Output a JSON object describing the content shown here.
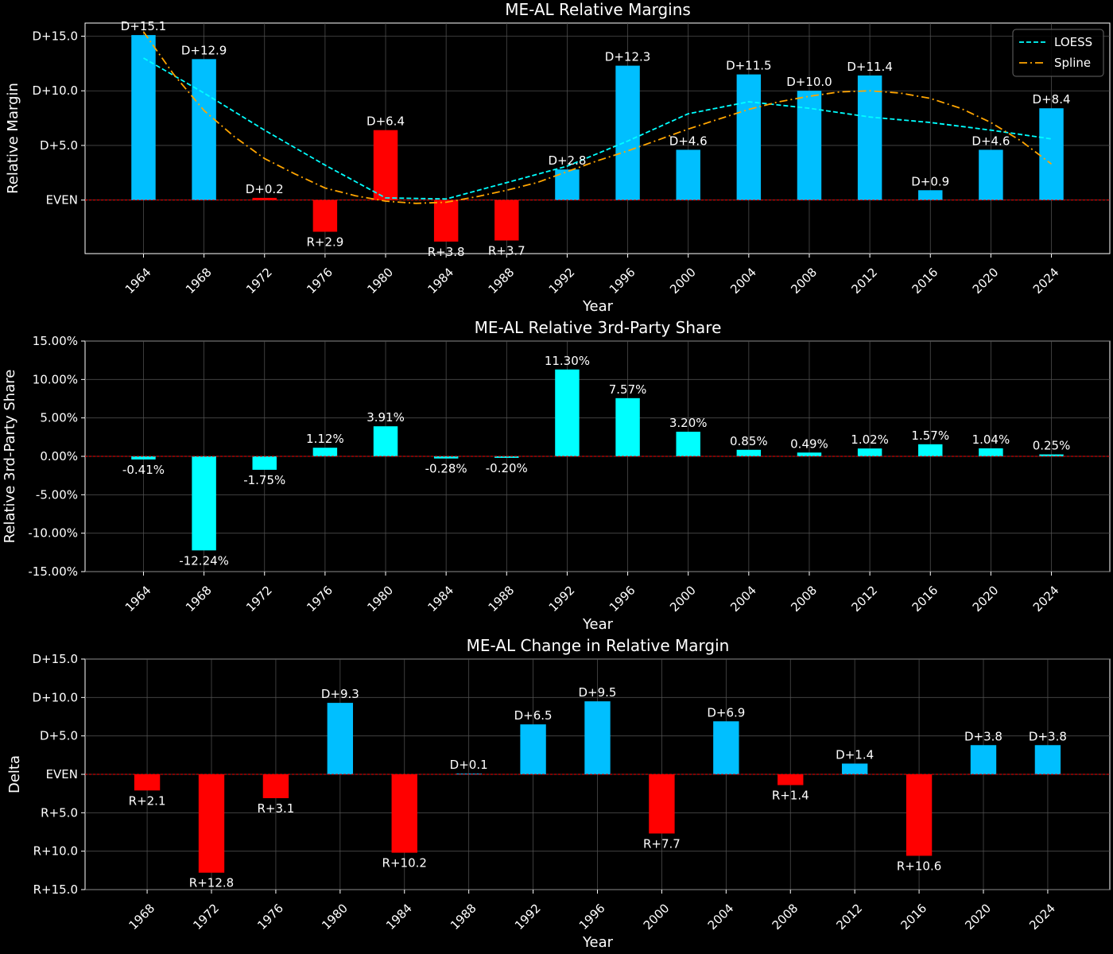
{
  "colors": {
    "background": "#000000",
    "dem": "#00bfff",
    "rep": "#ff0000",
    "third": "#00ffff",
    "loess": "#00ffff",
    "spline": "#ffa500",
    "grid": "#555555",
    "zero_line": "#ff0000"
  },
  "chart_data": [
    {
      "type": "bar",
      "title": "ME-AL Relative Margins",
      "xlabel": "Year",
      "ylabel": "Relative Margin",
      "ylim": [
        -4.9,
        16.2
      ],
      "yticks": [
        {
          "value": 0,
          "label": "EVEN"
        },
        {
          "value": 5,
          "label": "D+5.0"
        },
        {
          "value": 10,
          "label": "D+10.0"
        },
        {
          "value": 15,
          "label": "D+15.0"
        }
      ],
      "categories": [
        "1964",
        "1968",
        "1972",
        "1976",
        "1980",
        "1984",
        "1988",
        "1992",
        "1996",
        "2000",
        "2004",
        "2008",
        "2012",
        "2016",
        "2020",
        "2024"
      ],
      "values": [
        15.1,
        12.9,
        0.2,
        -2.9,
        6.4,
        -3.8,
        -3.7,
        2.8,
        12.3,
        4.6,
        11.5,
        10.0,
        11.4,
        0.9,
        4.6,
        8.4
      ],
      "labels": [
        "D+15.1",
        "D+12.9",
        "D+0.2",
        "R+2.9",
        "D+6.4",
        "R+3.8",
        "R+3.7",
        "D+2.8",
        "D+12.3",
        "D+4.6",
        "D+11.5",
        "D+10.0",
        "D+11.4",
        "D+0.9",
        "D+4.6",
        "D+8.4"
      ],
      "bar_colors": [
        "dem",
        "dem",
        "rep",
        "rep",
        "rep",
        "rep",
        "rep",
        "dem",
        "dem",
        "dem",
        "dem",
        "dem",
        "dem",
        "dem",
        "dem",
        "dem"
      ],
      "grid": true,
      "legend": "top-right",
      "lines": [
        {
          "name": "LOESS",
          "style": "dashed",
          "color": "loess",
          "x": [
            "1964",
            "1968",
            "1972",
            "1976",
            "1980",
            "1984",
            "1988",
            "1992",
            "1996",
            "2000",
            "2004",
            "2008",
            "2012",
            "2016",
            "2020",
            "2024"
          ],
          "values": [
            13.0,
            9.8,
            6.4,
            3.2,
            0.2,
            0.1,
            1.6,
            3.1,
            5.4,
            7.9,
            9.0,
            8.4,
            7.6,
            7.1,
            6.4,
            5.6
          ]
        },
        {
          "name": "Spline",
          "style": "dashdot",
          "color": "spline",
          "x": [
            "1964",
            "1966",
            "1968",
            "1970",
            "1972",
            "1974",
            "1976",
            "1978",
            "1980",
            "1982",
            "1984",
            "1986",
            "1988",
            "1990",
            "1992",
            "1994",
            "1996",
            "1998",
            "2000",
            "2002",
            "2004",
            "2006",
            "2008",
            "2010",
            "2012",
            "2014",
            "2016",
            "2018",
            "2020",
            "2022",
            "2024"
          ],
          "values": [
            15.4,
            11.5,
            8.2,
            5.8,
            3.8,
            2.4,
            1.1,
            0.4,
            -0.1,
            -0.3,
            -0.2,
            0.3,
            0.9,
            1.6,
            2.6,
            3.6,
            4.5,
            5.5,
            6.5,
            7.4,
            8.3,
            9.0,
            9.5,
            9.9,
            10.0,
            9.8,
            9.3,
            8.4,
            7.1,
            5.4,
            3.3
          ]
        }
      ]
    },
    {
      "type": "bar",
      "title": "ME-AL Relative 3rd-Party Share",
      "xlabel": "Year",
      "ylabel": "Relative 3rd-Party Share",
      "ylim": [
        -15,
        15
      ],
      "yticks": [
        {
          "value": -15,
          "label": "-15.00%"
        },
        {
          "value": -10,
          "label": "-10.00%"
        },
        {
          "value": -5,
          "label": "-5.00%"
        },
        {
          "value": 0,
          "label": "0.00%"
        },
        {
          "value": 5,
          "label": "5.00%"
        },
        {
          "value": 10,
          "label": "10.00%"
        },
        {
          "value": 15,
          "label": "15.00%"
        }
      ],
      "categories": [
        "1964",
        "1968",
        "1972",
        "1976",
        "1980",
        "1984",
        "1988",
        "1992",
        "1996",
        "2000",
        "2004",
        "2008",
        "2012",
        "2016",
        "2020",
        "2024"
      ],
      "values": [
        -0.41,
        -12.24,
        -1.75,
        1.12,
        3.91,
        -0.28,
        -0.2,
        11.3,
        7.57,
        3.2,
        0.85,
        0.49,
        1.02,
        1.57,
        1.04,
        0.25
      ],
      "labels": [
        "-0.41%",
        "-12.24%",
        "-1.75%",
        "1.12%",
        "3.91%",
        "-0.28%",
        "-0.20%",
        "11.30%",
        "7.57%",
        "3.20%",
        "0.85%",
        "0.49%",
        "1.02%",
        "1.57%",
        "1.04%",
        "0.25%"
      ],
      "bar_colors": [
        "third",
        "third",
        "third",
        "third",
        "third",
        "third",
        "third",
        "third",
        "third",
        "third",
        "third",
        "third",
        "third",
        "third",
        "third",
        "third"
      ],
      "grid": true
    },
    {
      "type": "bar",
      "title": "ME-AL Change in Relative Margin",
      "xlabel": "Year",
      "ylabel": "Delta",
      "ylim": [
        -15,
        15
      ],
      "yticks": [
        {
          "value": -15,
          "label": "R+15.0"
        },
        {
          "value": -10,
          "label": "R+10.0"
        },
        {
          "value": -5,
          "label": "R+5.0"
        },
        {
          "value": 0,
          "label": "EVEN"
        },
        {
          "value": 5,
          "label": "D+5.0"
        },
        {
          "value": 10,
          "label": "D+10.0"
        },
        {
          "value": 15,
          "label": "D+15.0"
        }
      ],
      "categories": [
        "1968",
        "1972",
        "1976",
        "1980",
        "1984",
        "1988",
        "1992",
        "1996",
        "2000",
        "2004",
        "2008",
        "2012",
        "2016",
        "2020",
        "2024"
      ],
      "values": [
        -2.1,
        -12.8,
        -3.1,
        9.3,
        -10.2,
        0.1,
        6.5,
        9.5,
        -7.7,
        6.9,
        -1.4,
        1.4,
        -10.6,
        3.8,
        3.8
      ],
      "labels": [
        "R+2.1",
        "R+12.8",
        "R+3.1",
        "D+9.3",
        "R+10.2",
        "D+0.1",
        "D+6.5",
        "D+9.5",
        "R+7.7",
        "D+6.9",
        "R+1.4",
        "D+1.4",
        "R+10.6",
        "D+3.8",
        "D+3.8"
      ],
      "bar_colors": [
        "rep",
        "rep",
        "rep",
        "dem",
        "rep",
        "dem",
        "dem",
        "dem",
        "rep",
        "dem",
        "rep",
        "dem",
        "rep",
        "dem",
        "dem"
      ],
      "grid": true
    }
  ]
}
